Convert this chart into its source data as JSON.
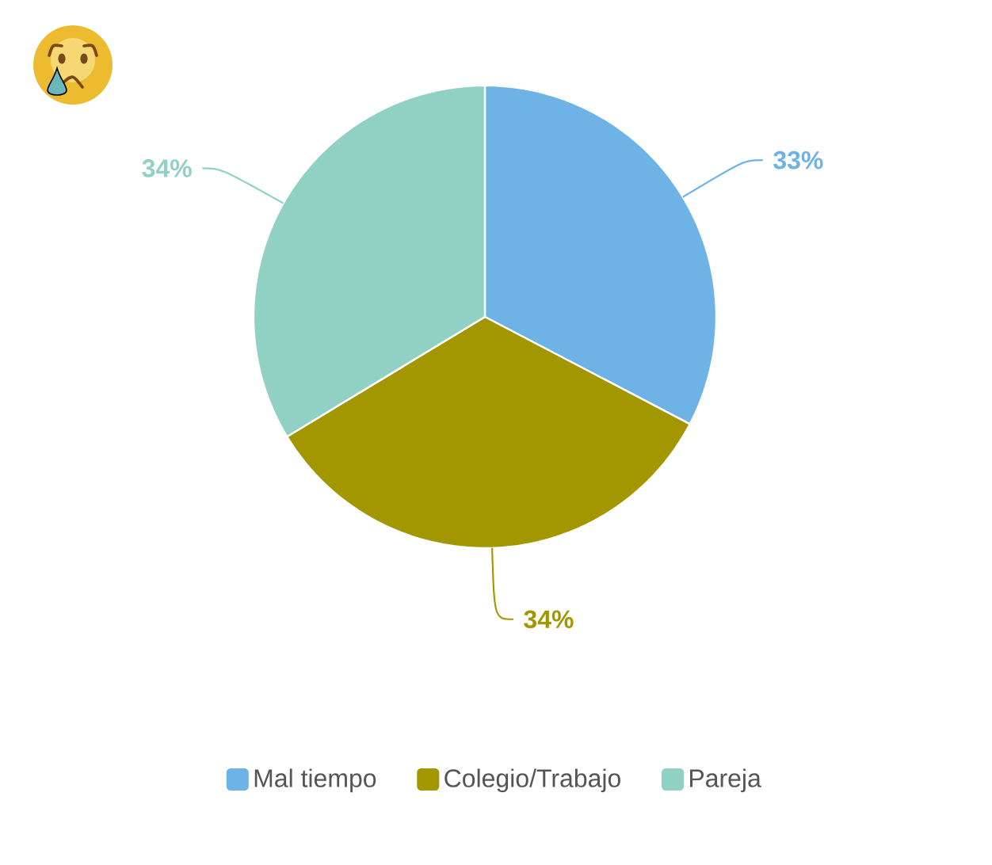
{
  "chart_data": {
    "type": "pie",
    "categories": [
      "Mal tiempo",
      "Colegio/Trabajo",
      "Pareja"
    ],
    "values": [
      33,
      34,
      34
    ],
    "colors": [
      "#6db3e5",
      "#a39700",
      "#90d1c4"
    ],
    "value_labels": [
      "33%",
      "34%",
      "34%"
    ],
    "legend": "bottom"
  }
}
